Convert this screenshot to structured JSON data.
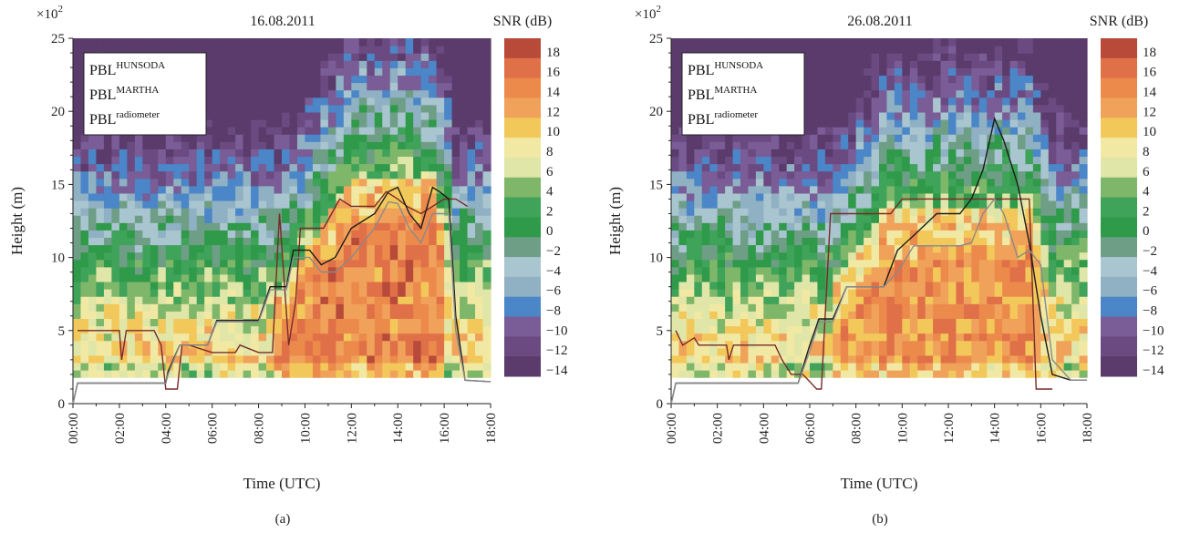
{
  "figure": {
    "panels": [
      {
        "id": "a",
        "title": "16.08.2011",
        "caption": "(a)",
        "multiplier": "×10",
        "multiplier_exp": "2",
        "xlabel": "Time (UTC)",
        "ylabel": "Height (m)",
        "xticks": [
          "00:00",
          "02:00",
          "04:00",
          "06:00",
          "08:00",
          "10:00",
          "12:00",
          "14:00",
          "16:00",
          "18:00"
        ],
        "yticks": [
          "0",
          "5",
          "10",
          "15",
          "20",
          "25"
        ],
        "colorbar_title": "SNR (dB)",
        "colorbar_ticks": [
          "18",
          "16",
          "14",
          "12",
          "10",
          "8",
          "6",
          "4",
          "2",
          "0",
          "−2",
          "−4",
          "−6",
          "−8",
          "−10",
          "−12",
          "−14"
        ],
        "legend": [
          {
            "base": "PBL",
            "sup": "HUNSODA"
          },
          {
            "base": "PBL",
            "sup": "MARTHA"
          },
          {
            "base": "PBL",
            "sup": "radiometer"
          }
        ]
      },
      {
        "id": "b",
        "title": "26.08.2011",
        "caption": "(b)",
        "multiplier": "×10",
        "multiplier_exp": "2",
        "xlabel": "Time (UTC)",
        "ylabel": "Height (m)",
        "xticks": [
          "00:00",
          "02:00",
          "04:00",
          "06:00",
          "08:00",
          "10:00",
          "12:00",
          "14:00",
          "16:00",
          "18:00"
        ],
        "yticks": [
          "0",
          "5",
          "10",
          "15",
          "20",
          "25"
        ],
        "colorbar_title": "SNR (dB)",
        "colorbar_ticks": [
          "18",
          "16",
          "14",
          "12",
          "10",
          "8",
          "6",
          "4",
          "2",
          "0",
          "−2",
          "−4",
          "−6",
          "−8",
          "−10",
          "−12",
          "−14"
        ],
        "legend": [
          {
            "base": "PBL",
            "sup": "HUNSODA"
          },
          {
            "base": "PBL",
            "sup": "MARTHA"
          },
          {
            "base": "PBL",
            "sup": "radiometer"
          }
        ]
      }
    ]
  },
  "chart_data": [
    {
      "type": "heatmap",
      "title": "16.08.2011",
      "xlabel": "Time (UTC)",
      "ylabel": "Height (m)",
      "xlim": [
        0,
        18
      ],
      "ylim": [
        0,
        25
      ],
      "y_scale_note": "×10^2",
      "colorbar": {
        "label": "SNR (dB)",
        "range": [
          -15,
          19
        ],
        "step": 2
      },
      "palette": [
        "#5a3b6b",
        "#6b4a82",
        "#7a5c96",
        "#4a86c8",
        "#8fb1c3",
        "#a9c5cf",
        "#6e9e86",
        "#2f9a49",
        "#3fa35a",
        "#7fb76a",
        "#dfe6a8",
        "#f1e9a3",
        "#f3c85a",
        "#f0a25a",
        "#ec8a4c",
        "#e07048",
        "#b84a3a"
      ],
      "series": [
        {
          "name": "PBL HUNSODA",
          "color": "#7a2a2a",
          "points": [
            [
              0.2,
              5
            ],
            [
              2,
              5
            ],
            [
              2.1,
              3
            ],
            [
              2.3,
              5
            ],
            [
              3.5,
              5
            ],
            [
              3.8,
              4
            ],
            [
              4,
              1
            ],
            [
              4.5,
              1
            ],
            [
              4.7,
              4
            ],
            [
              5,
              4
            ],
            [
              6,
              3.5
            ],
            [
              7,
              3.5
            ],
            [
              7.2,
              4
            ],
            [
              8,
              3.5
            ],
            [
              8.6,
              3.5
            ],
            [
              8.9,
              13
            ],
            [
              9.3,
              4
            ],
            [
              9.6,
              7
            ],
            [
              9.8,
              12
            ],
            [
              10.3,
              12
            ],
            [
              10.8,
              12
            ],
            [
              11.5,
              14
            ],
            [
              12,
              13.5
            ],
            [
              13,
              13.5
            ],
            [
              13.5,
              14.5
            ],
            [
              14,
              14
            ],
            [
              14.4,
              13.5
            ],
            [
              15,
              13
            ],
            [
              15.5,
              13.5
            ],
            [
              16,
              14
            ],
            [
              16.5,
              14
            ],
            [
              17,
              13.5
            ]
          ]
        },
        {
          "name": "PBL MARTHA",
          "color": "#1c1c1c",
          "points": [
            [
              0,
              0
            ],
            [
              0.2,
              1.4
            ],
            [
              4,
              1.4
            ],
            [
              4.1,
              2.2
            ],
            [
              4.6,
              4
            ],
            [
              5.8,
              4
            ],
            [
              6.2,
              5.7
            ],
            [
              8,
              5.7
            ],
            [
              8.5,
              8
            ],
            [
              9.2,
              8
            ],
            [
              9.5,
              10.5
            ],
            [
              10.2,
              10.5
            ],
            [
              10.7,
              9.5
            ],
            [
              11.3,
              10
            ],
            [
              12,
              12
            ],
            [
              13,
              13
            ],
            [
              13.6,
              14.5
            ],
            [
              14,
              14.8
            ],
            [
              14.5,
              13
            ],
            [
              15,
              12
            ],
            [
              15.5,
              14.8
            ],
            [
              15.8,
              14.5
            ],
            [
              16.2,
              14
            ],
            [
              16.5,
              6
            ],
            [
              16.9,
              1.6
            ],
            [
              18,
              1.5
            ]
          ]
        },
        {
          "name": "PBL radiometer",
          "color": "#8a8a8a",
          "points": [
            [
              0,
              0
            ],
            [
              0.2,
              1.4
            ],
            [
              4,
              1.4
            ],
            [
              4.1,
              2
            ],
            [
              4.6,
              4
            ],
            [
              5.8,
              4
            ],
            [
              6.2,
              5.6
            ],
            [
              8,
              5.6
            ],
            [
              8.5,
              7.8
            ],
            [
              9.2,
              7.8
            ],
            [
              9.5,
              10
            ],
            [
              10.2,
              10
            ],
            [
              10.7,
              9
            ],
            [
              11.3,
              9
            ],
            [
              12,
              10
            ],
            [
              13,
              12
            ],
            [
              13.6,
              13.8
            ],
            [
              14,
              13.7
            ],
            [
              14.5,
              12
            ],
            [
              15,
              11
            ],
            [
              15.5,
              13
            ],
            [
              16.2,
              13
            ],
            [
              16.5,
              5
            ],
            [
              16.9,
              1.6
            ],
            [
              18,
              1.5
            ]
          ]
        }
      ]
    },
    {
      "type": "heatmap",
      "title": "26.08.2011",
      "xlabel": "Time (UTC)",
      "ylabel": "Height (m)",
      "xlim": [
        0,
        18
      ],
      "ylim": [
        0,
        25
      ],
      "y_scale_note": "×10^2",
      "colorbar": {
        "label": "SNR (dB)",
        "range": [
          -15,
          19
        ],
        "step": 2
      },
      "palette": [
        "#5a3b6b",
        "#6b4a82",
        "#7a5c96",
        "#4a86c8",
        "#8fb1c3",
        "#a9c5cf",
        "#6e9e86",
        "#2f9a49",
        "#3fa35a",
        "#7fb76a",
        "#dfe6a8",
        "#f1e9a3",
        "#f3c85a",
        "#f0a25a",
        "#ec8a4c",
        "#e07048",
        "#b84a3a"
      ],
      "series": [
        {
          "name": "PBL HUNSODA",
          "color": "#7a2a2a",
          "points": [
            [
              0.2,
              5
            ],
            [
              0.5,
              4
            ],
            [
              1,
              4.5
            ],
            [
              1.2,
              4
            ],
            [
              2.4,
              4
            ],
            [
              2.5,
              3
            ],
            [
              2.7,
              4
            ],
            [
              4.5,
              4
            ],
            [
              4.8,
              3
            ],
            [
              5.2,
              2
            ],
            [
              5.7,
              2
            ],
            [
              6,
              1.5
            ],
            [
              6.3,
              1
            ],
            [
              6.5,
              1
            ],
            [
              6.9,
              13
            ],
            [
              9.5,
              13
            ],
            [
              10,
              14
            ],
            [
              13.5,
              14
            ],
            [
              15.5,
              14
            ],
            [
              15.8,
              1
            ],
            [
              16.5,
              1
            ]
          ]
        },
        {
          "name": "PBL MARTHA",
          "color": "#1c1c1c",
          "points": [
            [
              0,
              0
            ],
            [
              0.2,
              1.4
            ],
            [
              5.5,
              1.4
            ],
            [
              6,
              4
            ],
            [
              6.4,
              5.8
            ],
            [
              7,
              5.8
            ],
            [
              7.6,
              8
            ],
            [
              9.2,
              8
            ],
            [
              9.8,
              10.5
            ],
            [
              10.5,
              11.5
            ],
            [
              11.5,
              13
            ],
            [
              12.5,
              13
            ],
            [
              13,
              14
            ],
            [
              13.5,
              16
            ],
            [
              14,
              19.5
            ],
            [
              14.4,
              18
            ],
            [
              15,
              15
            ],
            [
              15.5,
              11
            ],
            [
              16,
              6
            ],
            [
              16.5,
              2
            ],
            [
              17.3,
              1.6
            ],
            [
              18,
              1.6
            ]
          ]
        },
        {
          "name": "PBL radiometer",
          "color": "#8a8a8a",
          "points": [
            [
              0,
              0
            ],
            [
              0.2,
              1.4
            ],
            [
              5.5,
              1.4
            ],
            [
              6,
              3.6
            ],
            [
              6.4,
              5.6
            ],
            [
              7,
              5.6
            ],
            [
              7.6,
              8
            ],
            [
              9.2,
              8
            ],
            [
              9.8,
              9
            ],
            [
              10.5,
              10.8
            ],
            [
              12.5,
              10.8
            ],
            [
              13,
              11
            ],
            [
              13.5,
              13
            ],
            [
              14,
              14
            ],
            [
              14.4,
              13
            ],
            [
              15,
              10
            ],
            [
              15.5,
              10.5
            ],
            [
              16,
              9.5
            ],
            [
              16.5,
              3
            ],
            [
              17.3,
              1.6
            ],
            [
              18,
              1.6
            ]
          ]
        }
      ]
    }
  ]
}
